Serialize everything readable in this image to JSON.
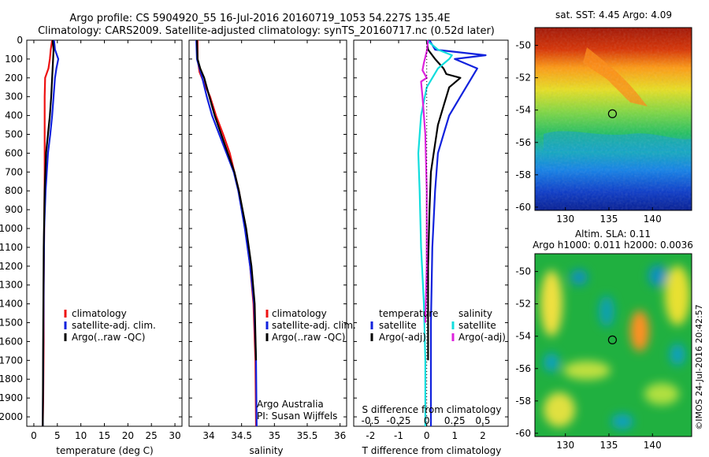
{
  "header": {
    "line1": "Argo profile: CS 5904920_55 16-Jul-2016 20160719_1053 54.227S 135.4E",
    "line2": "Climatology: CARS2009. Satellite-adjusted climatology: synTS_20160717.nc (0.52d later)"
  },
  "colors": {
    "red": "#ee1111",
    "blue": "#1122dd",
    "black": "#000000",
    "cyan": "#11dddd",
    "magenta": "#dd22dd"
  },
  "chart_data": [
    {
      "type": "line",
      "id": "temperature",
      "xlabel": "temperature (deg C)",
      "xlim": [
        -1.5,
        31.5
      ],
      "xticks": [
        0,
        5,
        10,
        15,
        20,
        25,
        30
      ],
      "xticklabels": [
        "0",
        "5",
        "10",
        "15",
        "20",
        "25",
        "30"
      ],
      "ylim": [
        0,
        2050
      ],
      "yticks": [
        0,
        100,
        200,
        300,
        400,
        500,
        600,
        700,
        800,
        900,
        1000,
        1100,
        1200,
        1300,
        1400,
        1500,
        1600,
        1700,
        1800,
        1900,
        2000
      ],
      "yticklabels": [
        "0",
        "100",
        "200",
        "300",
        "400",
        "500",
        "600",
        "700",
        "800",
        "900",
        "1000",
        "1100",
        "1200",
        "1300",
        "1400",
        "1500",
        "1600",
        "1700",
        "1800",
        "1900",
        "2000"
      ],
      "legend": [
        "climatology",
        "satellite-adj. clim.",
        "Argo(..raw -QC)"
      ],
      "legend_placement": "lower-center",
      "series": [
        {
          "name": "climatology",
          "color": "red",
          "x": [
            3.9,
            3.6,
            3.4,
            3.1,
            2.4,
            2.3,
            2.3,
            2.3,
            2.2,
            2.1,
            2.1,
            2.0,
            1.9
          ],
          "y": [
            0,
            50,
            100,
            150,
            200,
            300,
            500,
            700,
            1000,
            1300,
            1600,
            1900,
            2050
          ]
        },
        {
          "name": "satellite-adj. clim.",
          "color": "blue",
          "x": [
            4.3,
            4.5,
            5.2,
            4.8,
            4.5,
            4.2,
            3.9,
            3.5,
            3.0,
            2.5,
            2.2,
            2.1,
            2.0,
            1.9
          ],
          "y": [
            0,
            50,
            100,
            150,
            200,
            300,
            400,
            500,
            600,
            800,
            1000,
            1300,
            1700,
            2050
          ]
        },
        {
          "name": "Argo(..raw -QC)",
          "color": "black",
          "x": [
            4.0,
            4.2,
            4.1,
            3.9,
            3.7,
            3.4,
            3.0,
            2.6,
            2.3,
            2.1,
            2.0,
            1.9
          ],
          "y": [
            0,
            50,
            100,
            200,
            300,
            400,
            500,
            600,
            800,
            1100,
            1500,
            2050
          ]
        }
      ]
    },
    {
      "type": "line",
      "id": "salinity",
      "xlabel": "salinity",
      "xlim": [
        33.7,
        36.1
      ],
      "xticks": [
        34,
        34.5,
        35,
        35.5,
        36
      ],
      "xticklabels": [
        "34",
        "34.5",
        "35",
        "35.5",
        "36"
      ],
      "ylim": [
        0,
        2050
      ],
      "legend": [
        "climatology",
        "satellite-adj. clim.",
        "Argo(..raw -QC)"
      ],
      "legend_placement": "lower-center",
      "annotations": [
        "Argo Australia",
        "PI: Susan Wijffels"
      ],
      "series": [
        {
          "name": "climatology",
          "color": "red",
          "x": [
            33.83,
            33.83,
            33.86,
            33.92,
            34.02,
            34.11,
            34.22,
            34.32,
            34.46,
            34.56,
            34.63,
            34.68,
            34.71,
            34.72
          ],
          "y": [
            0,
            100,
            170,
            220,
            300,
            400,
            500,
            600,
            800,
            1000,
            1200,
            1400,
            1700,
            2050
          ]
        },
        {
          "name": "satellite-adj. clim.",
          "color": "blue",
          "x": [
            33.81,
            33.82,
            33.86,
            33.9,
            33.97,
            34.05,
            34.16,
            34.27,
            34.38,
            34.45,
            34.55,
            34.63,
            34.69,
            34.72,
            34.73
          ],
          "y": [
            0,
            100,
            150,
            200,
            300,
            400,
            500,
            600,
            700,
            800,
            1000,
            1200,
            1400,
            1700,
            2050
          ]
        },
        {
          "name": "Argo(..raw -QC)",
          "color": "black",
          "x": [
            33.82,
            33.83,
            33.87,
            33.93,
            34.01,
            34.09,
            34.19,
            34.29,
            34.39,
            34.46,
            34.57,
            34.65,
            34.7,
            34.72
          ],
          "y": [
            0,
            100,
            150,
            200,
            300,
            400,
            500,
            600,
            700,
            800,
            1000,
            1200,
            1400,
            1700
          ]
        }
      ]
    },
    {
      "type": "line",
      "id": "differences",
      "xlabel": "T difference from climatology",
      "xlim": [
        -2.6,
        2.9
      ],
      "xticks": [
        -2,
        -1,
        0,
        1,
        2
      ],
      "xticklabels": [
        "-2",
        "-1",
        "0",
        "1",
        "2"
      ],
      "top_axis_label": "S difference from climatology",
      "top_xticklabels": [
        "-0.5",
        "-0.25",
        "0",
        "0.25",
        "0.5"
      ],
      "ylim": [
        0,
        2050
      ],
      "legend_headings": [
        "temperature",
        "salinity"
      ],
      "legend": [
        "satellite",
        "Argo(-adj)",
        "satellite",
        "Argo(-adj)"
      ],
      "legend_placement": "lower-center",
      "series": [
        {
          "name": "temperature satellite",
          "color": "blue",
          "x": [
            0.1,
            0.3,
            2.1,
            1.0,
            1.8,
            1.6,
            1.2,
            0.8,
            0.6,
            0.4,
            0.3,
            0.2,
            0.15,
            0.15
          ],
          "y": [
            0,
            50,
            80,
            100,
            150,
            200,
            300,
            400,
            500,
            600,
            800,
            1100,
            1500,
            2050
          ]
        },
        {
          "name": "temperature Argo(-adj)",
          "color": "black",
          "x": [
            0.0,
            0.05,
            0.3,
            0.6,
            0.7,
            1.2,
            0.8,
            0.6,
            0.4,
            0.3,
            0.15,
            0.1,
            0.05,
            0.05
          ],
          "y": [
            0,
            50,
            100,
            150,
            180,
            200,
            250,
            350,
            450,
            550,
            700,
            900,
            1200,
            1700
          ]
        },
        {
          "name": "salinity satellite",
          "color": "cyan",
          "x": [
            0.0,
            0.4,
            0.9,
            0.8,
            0.4,
            0.0,
            -0.2,
            -0.3,
            -0.25,
            -0.2,
            -0.1,
            -0.05,
            -0.05
          ],
          "y": [
            0,
            50,
            80,
            100,
            150,
            250,
            400,
            600,
            800,
            1100,
            1400,
            1700,
            2050
          ]
        },
        {
          "name": "salinity Argo(-adj)",
          "color": "magenta",
          "x": [
            0.05,
            0.0,
            -0.1,
            -0.15,
            0.0,
            -0.2,
            -0.15,
            -0.05,
            0.0,
            0.0,
            -0.05
          ],
          "y": [
            0,
            60,
            120,
            160,
            200,
            220,
            300,
            500,
            800,
            1200,
            1500
          ]
        },
        {
          "name": "zero reference",
          "color": "black",
          "x": [
            0,
            0
          ],
          "y": [
            0,
            2050
          ]
        }
      ]
    },
    {
      "type": "heatmap",
      "id": "sst-map",
      "title": "sat. SST: 4.45 Argo: 4.09",
      "xlim": [
        126.5,
        144.5
      ],
      "ylim": [
        -60.2,
        -48.9
      ],
      "xticks": [
        130,
        135,
        140
      ],
      "xticklabels": [
        "130",
        "135",
        "140"
      ],
      "yticks": [
        -50,
        -52,
        -54,
        -56,
        -58,
        -60
      ],
      "yticklabels": [
        "-50",
        "-52",
        "-54",
        "-56",
        "-58",
        "-60"
      ],
      "marker": {
        "lon": 135.4,
        "lat": -54.227
      }
    },
    {
      "type": "heatmap",
      "id": "sla-map",
      "title": "Altim. SLA: 0.11",
      "subtitle": "Argo h1000: 0.011 h2000: 0.0036",
      "xlim": [
        126.5,
        144.5
      ],
      "ylim": [
        -60.2,
        -48.9
      ],
      "xticks": [
        130,
        135,
        140
      ],
      "xticklabels": [
        "130",
        "135",
        "140"
      ],
      "yticks": [
        -50,
        -52,
        -54,
        -56,
        -58,
        -60
      ],
      "yticklabels": [
        "-50",
        "-52",
        "-54",
        "-56",
        "-58",
        "-60"
      ],
      "marker": {
        "lon": 135.4,
        "lat": -54.227
      }
    }
  ],
  "footer": {
    "credit": "©IMOS 24-Jul-2016 20:42:57"
  }
}
